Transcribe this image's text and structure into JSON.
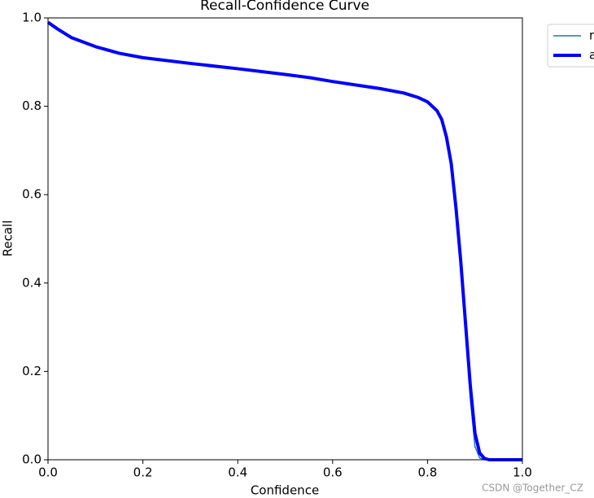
{
  "chart_data": {
    "type": "line",
    "title": "Recall-Confidence Curve",
    "xlabel": "Confidence",
    "ylabel": "Recall",
    "x": [
      0,
      0.02,
      0.05,
      0.1,
      0.15,
      0.2,
      0.3,
      0.4,
      0.5,
      0.55,
      0.6,
      0.7,
      0.75,
      0.78,
      0.8,
      0.82,
      0.83,
      0.84,
      0.85,
      0.86,
      0.87,
      0.88,
      0.89,
      0.9,
      0.91,
      0.92,
      0.93,
      1.0
    ],
    "series": [
      {
        "name": "r",
        "color": "#1f77b4",
        "width": 1.5,
        "values": [
          0.99,
          0.975,
          0.955,
          0.935,
          0.92,
          0.91,
          0.897,
          0.885,
          0.872,
          0.865,
          0.856,
          0.84,
          0.83,
          0.82,
          0.81,
          0.79,
          0.77,
          0.73,
          0.67,
          0.57,
          0.45,
          0.3,
          0.14,
          0.03,
          0.004,
          0,
          0,
          0
        ]
      },
      {
        "name": "a",
        "color": "#0000ff",
        "width": 4,
        "values": [
          0.99,
          0.975,
          0.955,
          0.935,
          0.92,
          0.91,
          0.897,
          0.885,
          0.872,
          0.865,
          0.856,
          0.84,
          0.83,
          0.82,
          0.81,
          0.79,
          0.77,
          0.73,
          0.67,
          0.57,
          0.45,
          0.31,
          0.17,
          0.06,
          0.015,
          0.003,
          0,
          0
        ]
      }
    ],
    "xlim": [
      0,
      1
    ],
    "ylim": [
      0,
      1
    ],
    "xticks": [
      {
        "value": 0,
        "label": "0.0"
      },
      {
        "value": 0.2,
        "label": "0.2"
      },
      {
        "value": 0.4,
        "label": "0.4"
      },
      {
        "value": 0.6,
        "label": "0.6"
      },
      {
        "value": 0.8,
        "label": "0.8"
      },
      {
        "value": 1,
        "label": "1.0"
      }
    ],
    "yticks": [
      {
        "value": 0,
        "label": "0.0"
      },
      {
        "value": 0.2,
        "label": "0.2"
      },
      {
        "value": 0.4,
        "label": "0.4"
      },
      {
        "value": 0.6,
        "label": "0.6"
      },
      {
        "value": 0.8,
        "label": "0.8"
      },
      {
        "value": 1,
        "label": "1.0"
      }
    ],
    "legend": "outside-upper-right",
    "watermark": "CSDN @Together_CZ"
  }
}
